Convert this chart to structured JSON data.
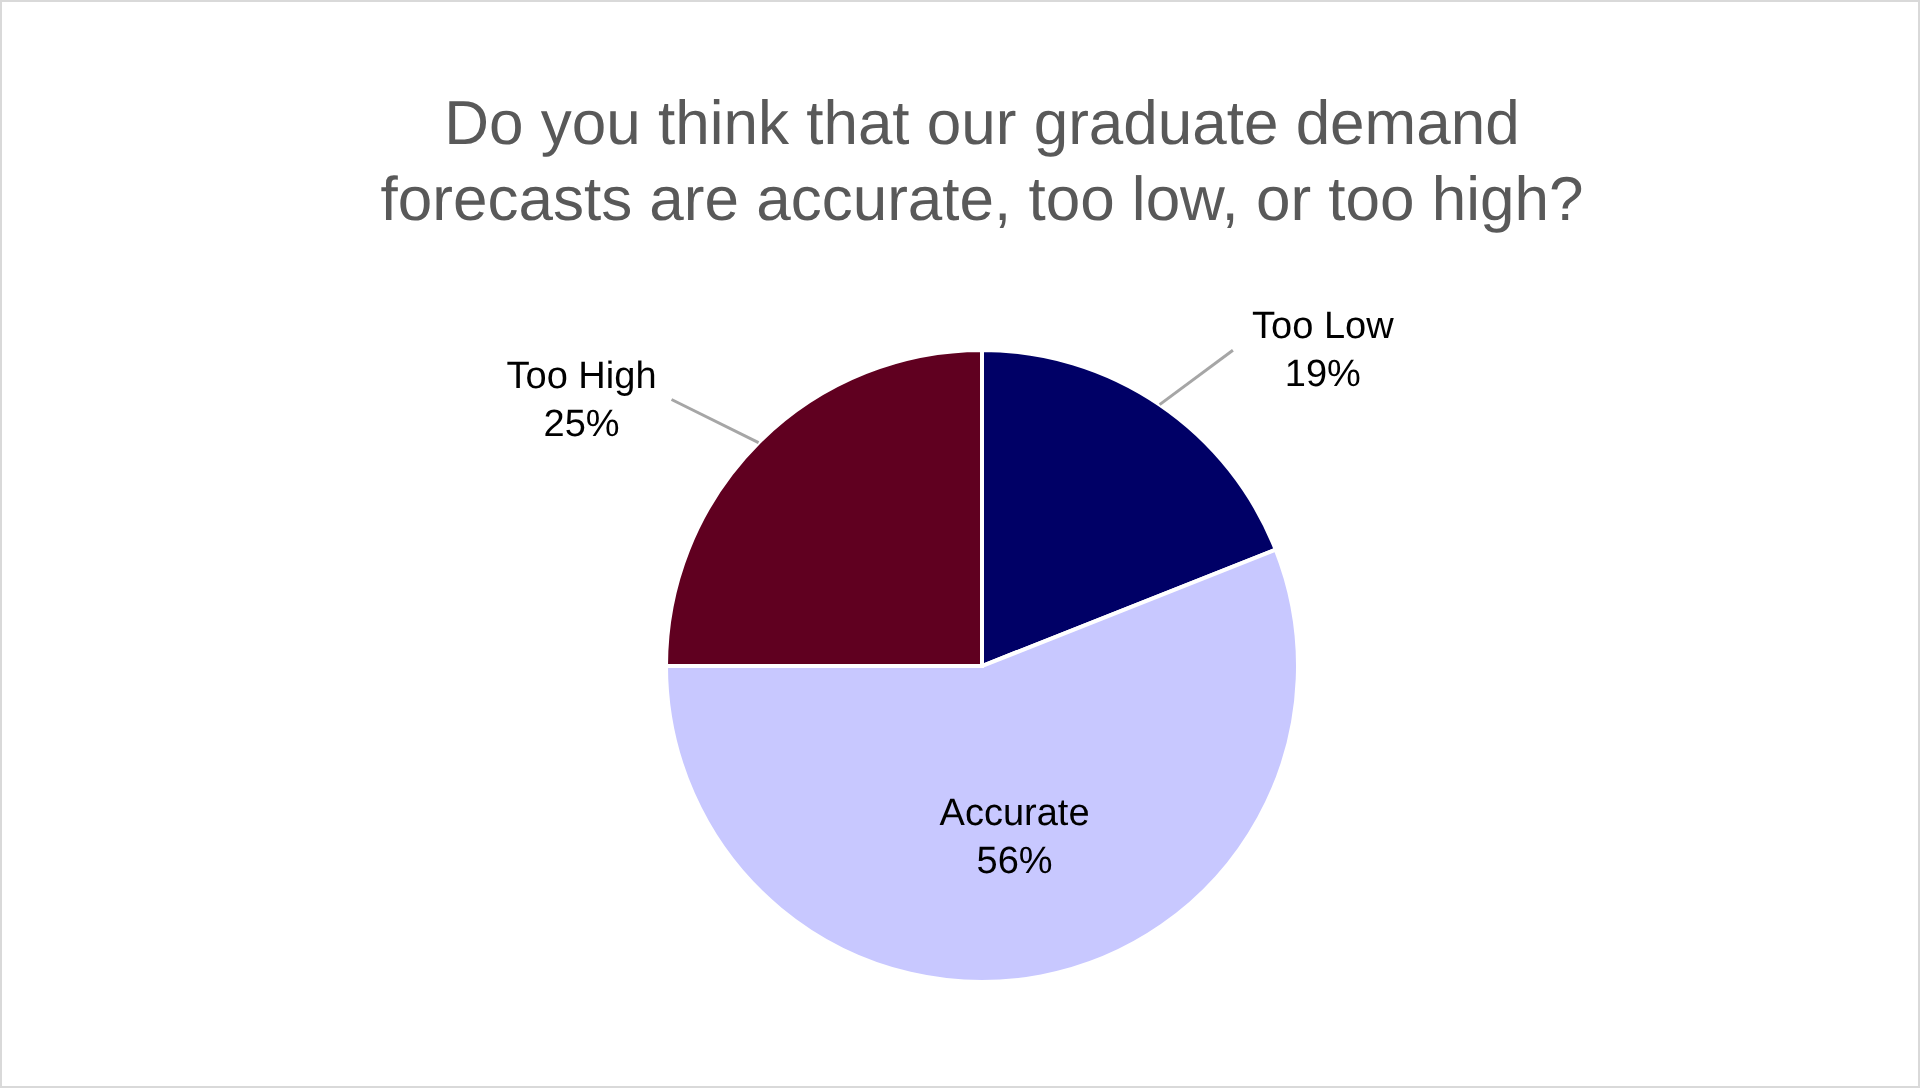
{
  "chart_data": {
    "type": "pie",
    "title": "Do you think that our graduate demand forecasts are accurate, too low, or too high?",
    "categories": [
      "Too Low",
      "Accurate",
      "Too High"
    ],
    "values": [
      19,
      56,
      25
    ],
    "colors": [
      "#000066",
      "#c8c8ff",
      "#600020"
    ],
    "value_labels": [
      "19%",
      "56%",
      "25%"
    ]
  }
}
